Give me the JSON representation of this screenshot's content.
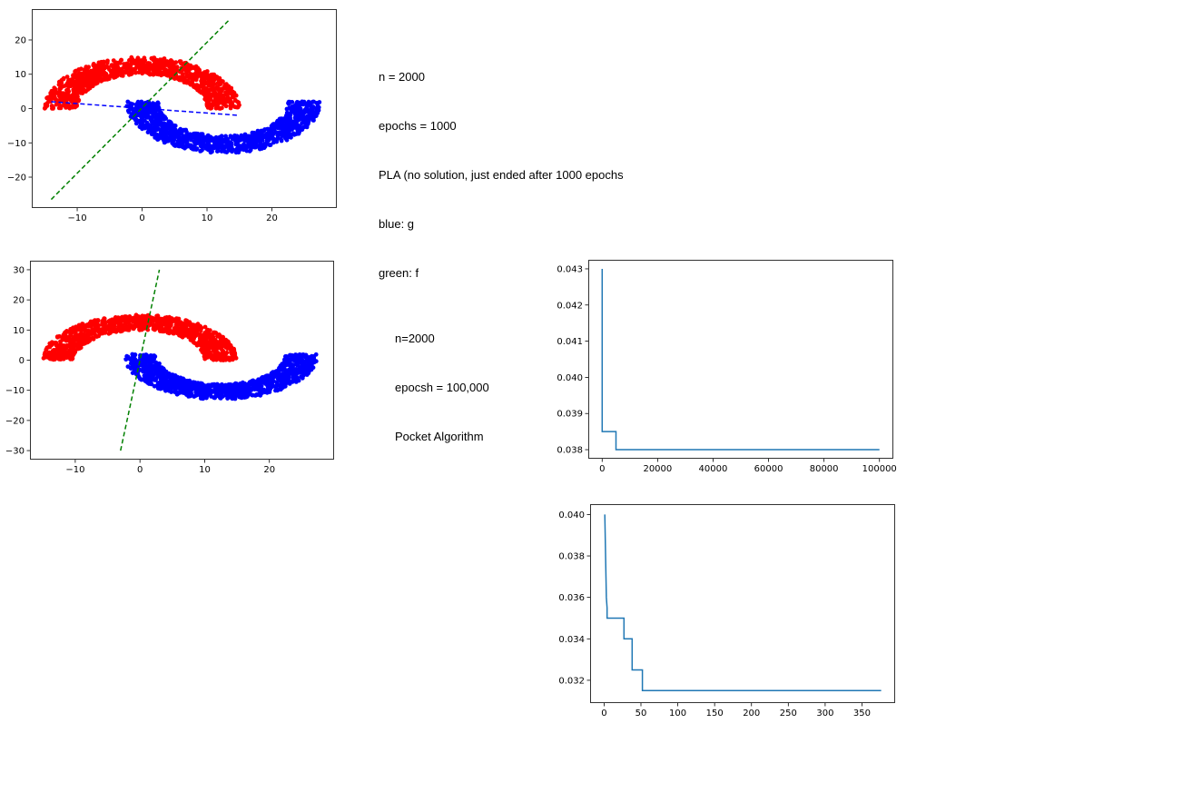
{
  "notes": [
    {
      "lines": [
        "n = 2000",
        "epochs = 1000",
        "PLA (no solution, just ended after 1000 epochs",
        "blue: g",
        "green: f"
      ]
    },
    {
      "lines": [
        "n=2000",
        "epocsh = 100,000",
        "Pocket Algorithm"
      ]
    }
  ],
  "chart_data": [
    {
      "type": "scatter",
      "title": "",
      "xlabel": "",
      "ylabel": "",
      "xlim": [
        -17,
        30
      ],
      "ylim": [
        -29,
        29
      ],
      "xticks": [
        -10,
        0,
        10,
        20
      ],
      "yticks": [
        -20,
        -10,
        0,
        10,
        20
      ],
      "series": [
        {
          "kind": "half-moon",
          "color": "#ff0000",
          "center": [
            0,
            0
          ],
          "inner_radius": 10,
          "outer_radius": 15,
          "side": "upper",
          "n": 1000
        },
        {
          "kind": "half-moon",
          "color": "#0000ff",
          "center": [
            12.5,
            2
          ],
          "inner_radius": 10,
          "outer_radius": 15,
          "side": "lower",
          "n": 1000
        }
      ],
      "lines": [
        {
          "label": "g",
          "color": "#0000ff",
          "dash": "dashed",
          "x": [
            -14,
            15
          ],
          "y": [
            2,
            -2
          ]
        },
        {
          "label": "f",
          "color": "#008000",
          "dash": "dashed",
          "x": [
            -14,
            13.5
          ],
          "y": [
            -26.5,
            26
          ]
        }
      ]
    },
    {
      "type": "scatter",
      "title": "",
      "xlabel": "",
      "ylabel": "",
      "xlim": [
        -17,
        30
      ],
      "ylim": [
        -33,
        33
      ],
      "xticks": [
        -10,
        0,
        10,
        20
      ],
      "yticks": [
        -30,
        -20,
        -10,
        0,
        10,
        20,
        30
      ],
      "series": [
        {
          "kind": "half-moon",
          "color": "#ff0000",
          "center": [
            0,
            0
          ],
          "inner_radius": 10,
          "outer_radius": 15,
          "side": "upper",
          "n": 1000
        },
        {
          "kind": "half-moon",
          "color": "#0000ff",
          "center": [
            12.5,
            2
          ],
          "inner_radius": 10,
          "outer_radius": 15,
          "side": "lower",
          "n": 1000
        }
      ],
      "lines": [
        {
          "label": "g",
          "color": "#0000ff",
          "dash": "dashed",
          "x": [
            -2.5,
            2
          ],
          "y": [
            0.5,
            0
          ]
        },
        {
          "label": "f",
          "color": "#008000",
          "dash": "dashed",
          "x": [
            -3,
            3
          ],
          "y": [
            -30,
            30
          ]
        }
      ]
    },
    {
      "type": "line",
      "title": "",
      "xlabel": "",
      "ylabel": "",
      "xlim": [
        -5000,
        105000
      ],
      "ylim": [
        0.03775,
        0.04325
      ],
      "xticks": [
        0,
        20000,
        40000,
        60000,
        80000,
        100000
      ],
      "yticks": [
        0.038,
        0.039,
        0.04,
        0.041,
        0.042,
        0.043
      ],
      "ytick_decimals": 3,
      "series": [
        {
          "color": "#1f77b4",
          "x": [
            0,
            0,
            5000,
            5000,
            100000
          ],
          "y": [
            0.043,
            0.0385,
            0.0385,
            0.038,
            0.038
          ]
        }
      ]
    },
    {
      "type": "line",
      "title": "",
      "xlabel": "",
      "ylabel": "",
      "xlim": [
        -19,
        395
      ],
      "ylim": [
        0.0309,
        0.0405
      ],
      "xticks": [
        0,
        50,
        100,
        150,
        200,
        250,
        300,
        350
      ],
      "yticks": [
        0.032,
        0.034,
        0.036,
        0.038,
        0.04
      ],
      "ytick_decimals": 3,
      "series": [
        {
          "color": "#1f77b4",
          "x": [
            1,
            3,
            3,
            4,
            4,
            27,
            27,
            38,
            38,
            43,
            43,
            52,
            52,
            376
          ],
          "y": [
            0.04,
            0.036,
            0.036,
            0.0355,
            0.035,
            0.035,
            0.034,
            0.034,
            0.0325,
            0.0325,
            0.0325,
            0.0325,
            0.0315,
            0.0315
          ]
        }
      ]
    }
  ]
}
